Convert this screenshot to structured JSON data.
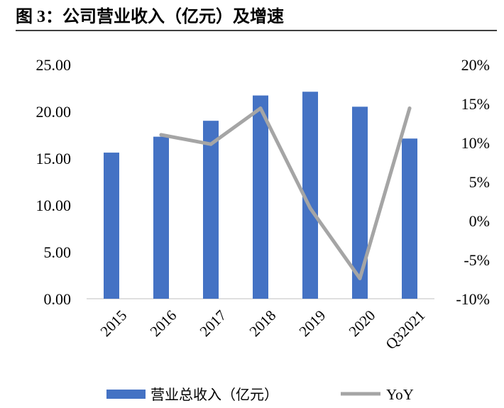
{
  "figure": {
    "title": "图 3：公司营业收入（亿元）及增速"
  },
  "chart_data": {
    "type": "bar",
    "categories": [
      "2015",
      "2016",
      "2017",
      "2018",
      "2019",
      "2020",
      "Q32021"
    ],
    "y_left": {
      "ylim": [
        0,
        25
      ],
      "tick_labels": [
        "0.00",
        "5.00",
        "10.00",
        "15.00",
        "20.00",
        "25.00"
      ]
    },
    "y_right": {
      "ylim": [
        -10,
        20
      ],
      "tick_labels": [
        "-10%",
        "-5%",
        "0%",
        "5%",
        "10%",
        "15%",
        "20%"
      ]
    },
    "series": [
      {
        "name": "营业总收入（亿元）",
        "type": "bar",
        "axis": "left",
        "color": "#4472C4",
        "values": [
          15.6,
          17.3,
          19.0,
          21.7,
          22.1,
          20.5,
          17.1
        ]
      },
      {
        "name": "YoY",
        "type": "line",
        "axis": "right",
        "color": "#A5A5A5",
        "values": [
          null,
          11.0,
          9.8,
          14.4,
          1.6,
          -7.4,
          14.4
        ]
      }
    ],
    "grid": false,
    "legend_position": "bottom"
  }
}
